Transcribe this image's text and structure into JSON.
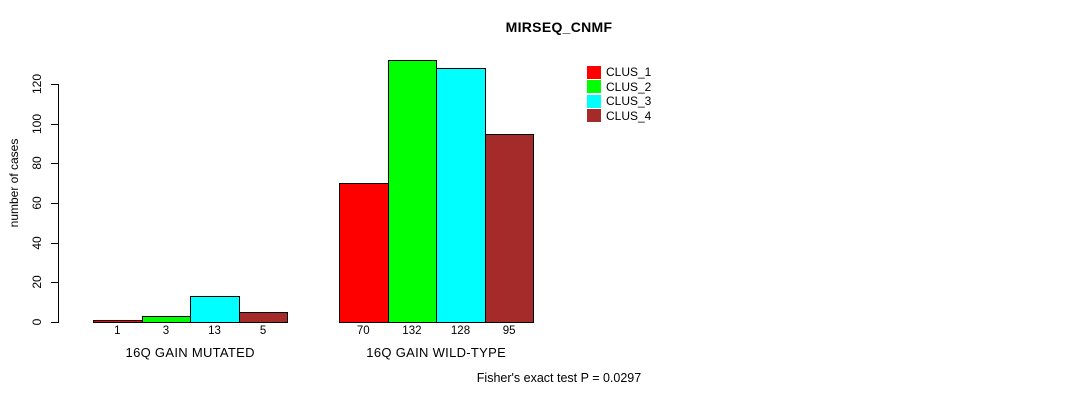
{
  "chart_data": {
    "type": "bar",
    "title": "MIRSEQ_CNMF",
    "ylabel": "number of cases",
    "xlabel": "",
    "yticks": [
      0,
      20,
      40,
      60,
      80,
      100,
      120
    ],
    "ylim": [
      0,
      132
    ],
    "grid": false,
    "legend_position": "right",
    "categories": [
      "16Q GAIN MUTATED",
      "16Q GAIN WILD-TYPE"
    ],
    "series": [
      {
        "name": "CLUS_1",
        "color": "#FF0000",
        "values": [
          1,
          70
        ]
      },
      {
        "name": "CLUS_2",
        "color": "#00FF00",
        "values": [
          3,
          132
        ]
      },
      {
        "name": "CLUS_3",
        "color": "#00FFFF",
        "values": [
          13,
          128
        ]
      },
      {
        "name": "CLUS_4",
        "color": "#A52A2A",
        "values": [
          5,
          95
        ]
      }
    ],
    "annotation": "Fisher's exact test P = 0.0297"
  },
  "colors": {
    "background": "#FFFFFF",
    "axis": "#000000",
    "text": "#000000"
  }
}
